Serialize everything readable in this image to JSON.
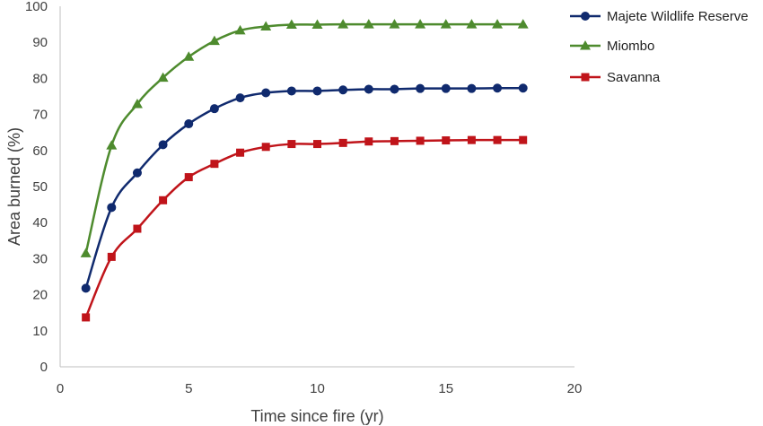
{
  "chart_data": {
    "type": "line",
    "xlabel": "Time since fire (yr)",
    "ylabel": "Area burned (%)",
    "xlim": [
      0,
      20
    ],
    "ylim": [
      0,
      100
    ],
    "xticks": [
      0,
      5,
      10,
      15,
      20
    ],
    "yticks": [
      0,
      10,
      20,
      30,
      40,
      50,
      60,
      70,
      80,
      90,
      100
    ],
    "grid": false,
    "legend_position": "top-right",
    "x": [
      1,
      2,
      3,
      4,
      5,
      6,
      7,
      8,
      9,
      10,
      11,
      12,
      13,
      14,
      15,
      16,
      17,
      18
    ],
    "series": [
      {
        "name": "Majete Wildlife Reserve",
        "color": "#102a6e",
        "marker": "circle",
        "values": [
          21.8,
          44.2,
          53.8,
          61.6,
          67.4,
          71.6,
          74.6,
          76.0,
          76.5,
          76.5,
          76.8,
          77.0,
          77.0,
          77.2,
          77.2,
          77.2,
          77.3,
          77.3
        ]
      },
      {
        "name": "Miombo",
        "color": "#4e8b2e",
        "marker": "triangle",
        "values": [
          31.5,
          61.4,
          72.9,
          80.2,
          86.0,
          90.4,
          93.3,
          94.4,
          94.9,
          94.9,
          95.0,
          95.0,
          95.0,
          95.0,
          95.0,
          95.0,
          95.0,
          95.0
        ]
      },
      {
        "name": "Savanna",
        "color": "#c0141a",
        "marker": "square",
        "values": [
          13.7,
          30.5,
          38.3,
          46.2,
          52.6,
          56.3,
          59.4,
          61.0,
          61.8,
          61.8,
          62.1,
          62.5,
          62.6,
          62.7,
          62.8,
          62.9,
          62.9,
          62.9
        ]
      }
    ]
  }
}
